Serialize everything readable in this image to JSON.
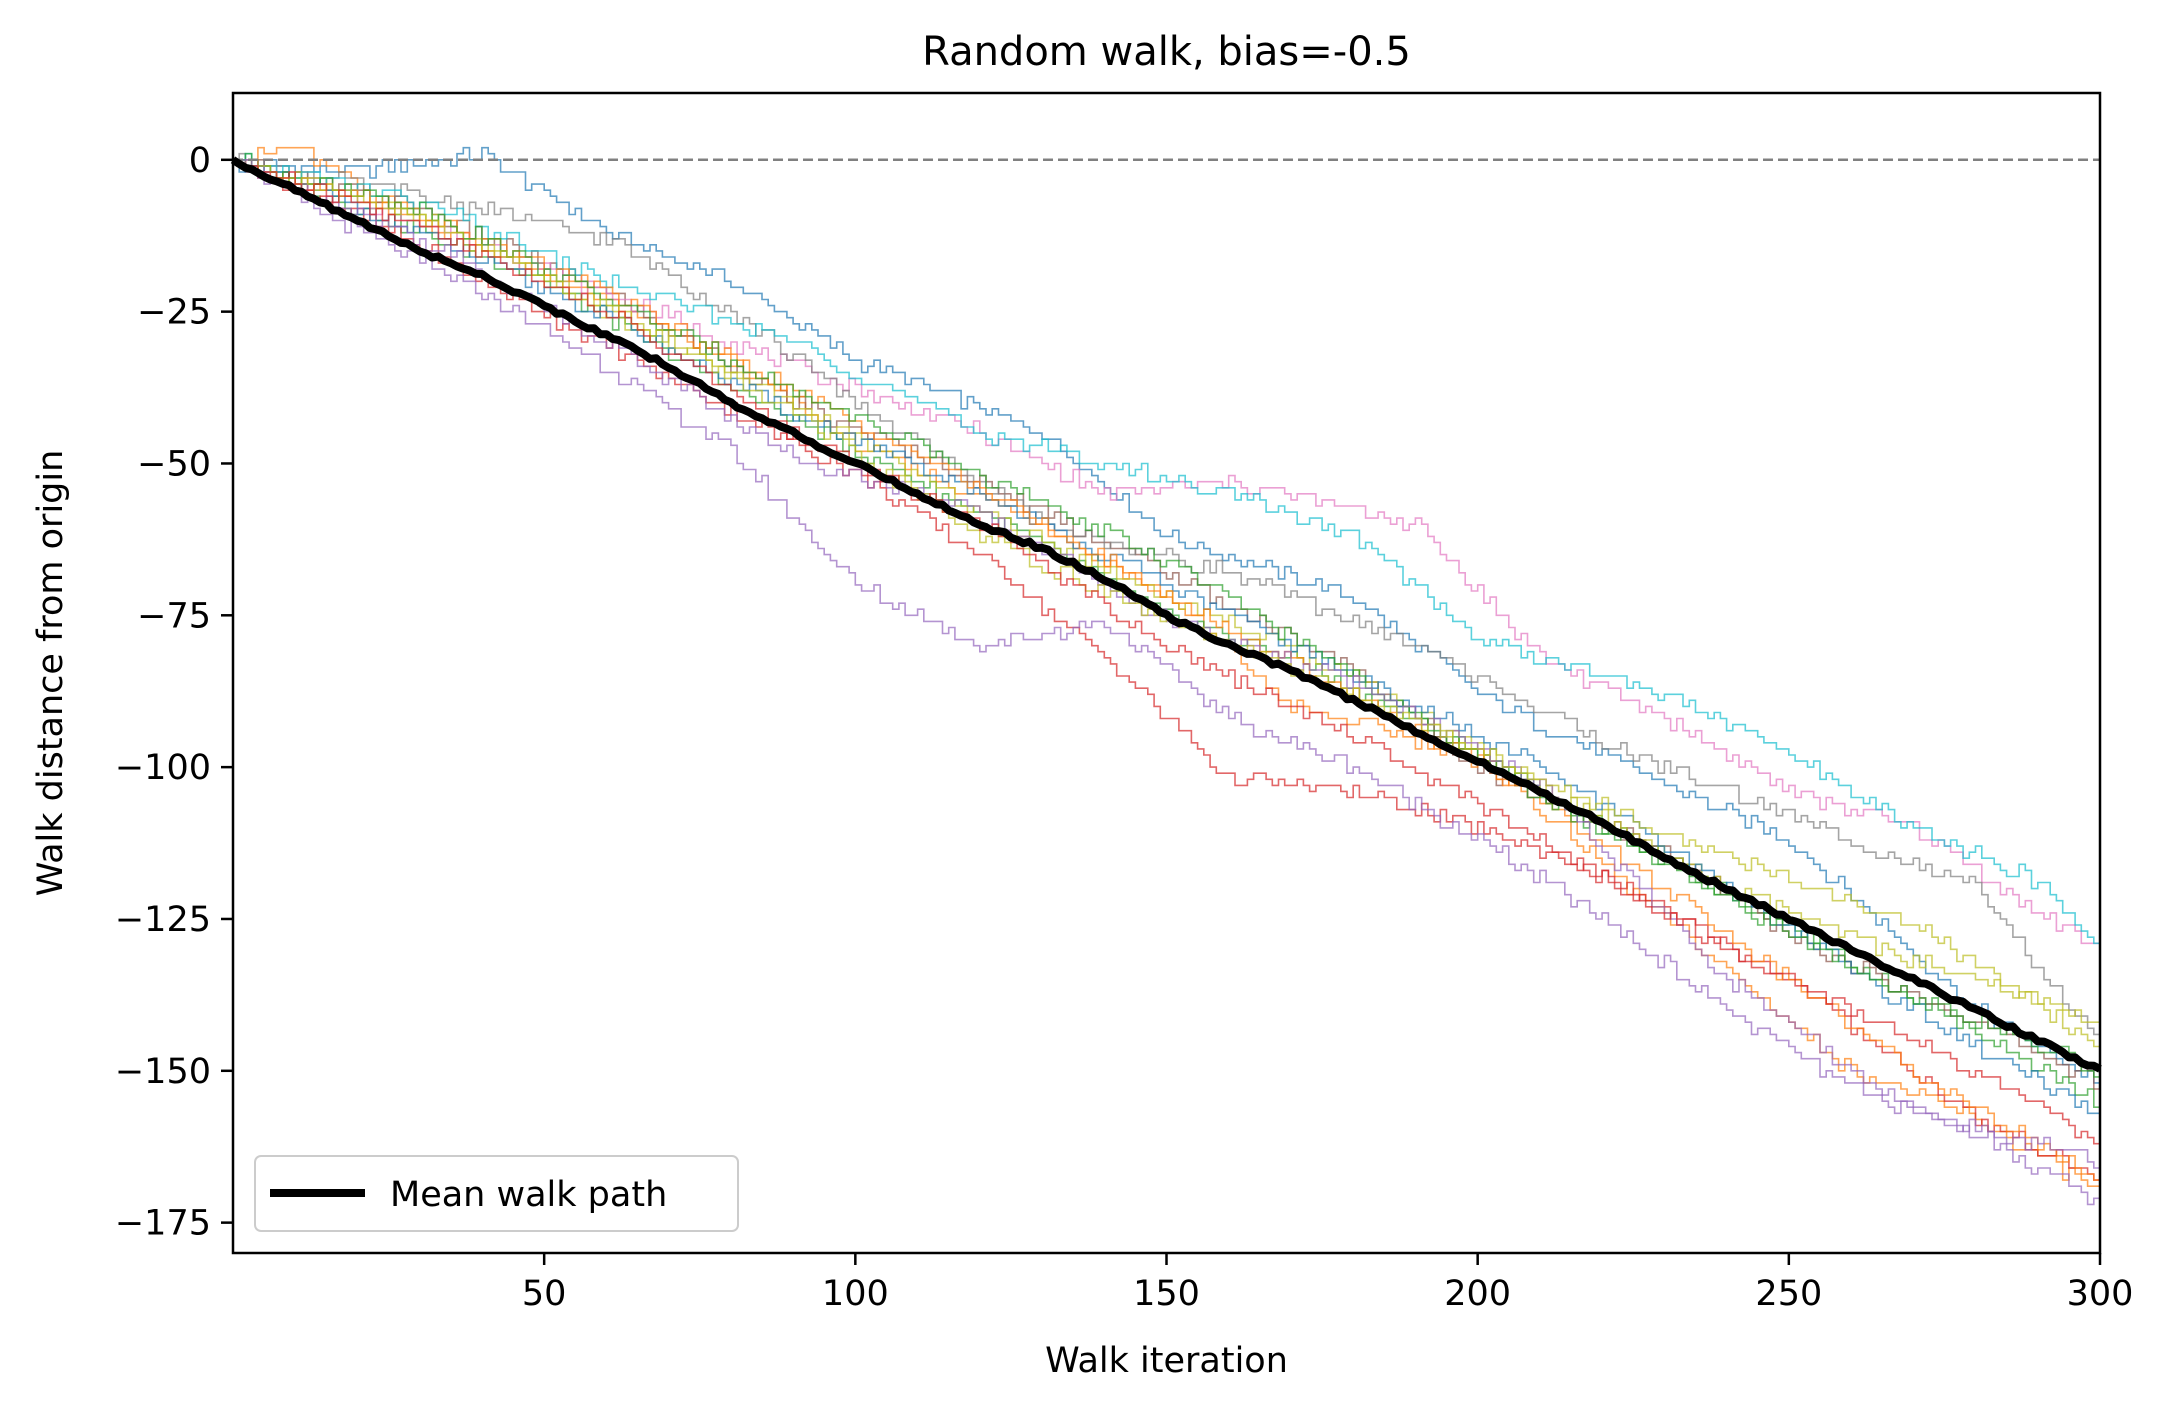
{
  "chart_data": {
    "type": "line",
    "title": "Random walk, bias=-0.5",
    "xlabel": "Walk iteration",
    "ylabel": "Walk distance from origin",
    "xlim": [
      0,
      300
    ],
    "ylim": [
      -180,
      11
    ],
    "xticks": [
      50,
      100,
      150,
      200,
      250,
      300
    ],
    "xtick_labels": [
      "50",
      "100",
      "150",
      "200",
      "250",
      "300"
    ],
    "yticks": [
      0,
      -25,
      -50,
      -75,
      -100,
      -125,
      -150,
      -175
    ],
    "ytick_labels": [
      "0",
      "−25",
      "−50",
      "−75",
      "−100",
      "−125",
      "−150",
      "−175"
    ],
    "grid": false,
    "reference_line": {
      "y": 0,
      "style": "dashed",
      "color": "#808080"
    },
    "legend": {
      "position": "lower-left",
      "entries": [
        "Mean walk path"
      ]
    },
    "mean_series": {
      "name": "Mean walk path",
      "color": "#000000",
      "x": [
        0,
        10,
        20,
        30,
        40,
        50,
        60,
        70,
        80,
        90,
        100,
        110,
        120,
        130,
        140,
        150,
        160,
        170,
        180,
        190,
        200,
        210,
        220,
        230,
        240,
        250,
        260,
        270,
        280,
        290,
        300
      ],
      "y": [
        0,
        -5,
        -10,
        -15,
        -19,
        -24,
        -29,
        -34,
        -40,
        -45,
        -50,
        -55,
        -60,
        -64,
        -69,
        -75,
        -80,
        -84,
        -89,
        -94,
        -99,
        -104,
        -109,
        -115,
        -120,
        -125,
        -130,
        -135,
        -140,
        -145,
        -150
      ]
    },
    "walk_series": [
      {
        "color": "#1f77b4",
        "x": [
          0,
          20,
          40,
          60,
          80,
          100,
          130,
          150,
          180,
          200,
          220,
          250,
          280,
          300
        ],
        "y": [
          0,
          -2,
          1,
          -12,
          -20,
          -33,
          -45,
          -62,
          -72,
          -88,
          -98,
          -112,
          -140,
          -152
        ]
      },
      {
        "color": "#ff7f0e",
        "x": [
          0,
          10,
          30,
          50,
          80,
          100,
          130,
          150,
          170,
          200,
          230,
          260,
          280,
          300
        ],
        "y": [
          0,
          2,
          -10,
          -19,
          -33,
          -47,
          -60,
          -72,
          -90,
          -98,
          -125,
          -150,
          -158,
          -170
        ]
      },
      {
        "color": "#2ca02c",
        "x": [
          0,
          30,
          50,
          70,
          100,
          120,
          150,
          170,
          200,
          220,
          250,
          270,
          300
        ],
        "y": [
          0,
          -12,
          -20,
          -32,
          -48,
          -58,
          -75,
          -82,
          -98,
          -110,
          -126,
          -138,
          -155
        ]
      },
      {
        "color": "#d62728",
        "x": [
          0,
          20,
          40,
          70,
          100,
          120,
          140,
          160,
          180,
          200,
          220,
          250,
          280,
          300
        ],
        "y": [
          0,
          -9,
          -20,
          -36,
          -52,
          -65,
          -82,
          -102,
          -104,
          -110,
          -118,
          -135,
          -158,
          -168
        ]
      },
      {
        "color": "#9467bd",
        "x": [
          0,
          20,
          40,
          60,
          80,
          100,
          120,
          140,
          160,
          180,
          200,
          220,
          240,
          260,
          280,
          300
        ],
        "y": [
          0,
          -12,
          -22,
          -34,
          -48,
          -70,
          -80,
          -76,
          -92,
          -100,
          -112,
          -125,
          -140,
          -153,
          -160,
          -172
        ]
      },
      {
        "color": "#8c564b",
        "x": [
          0,
          30,
          60,
          90,
          120,
          150,
          180,
          200,
          230,
          250,
          280,
          300
        ],
        "y": [
          0,
          -8,
          -22,
          -40,
          -53,
          -68,
          -84,
          -100,
          -114,
          -128,
          -142,
          -152
        ]
      },
      {
        "color": "#e377c2",
        "x": [
          0,
          30,
          60,
          90,
          120,
          140,
          160,
          190,
          210,
          230,
          250,
          270,
          290,
          300
        ],
        "y": [
          0,
          -10,
          -22,
          -34,
          -45,
          -55,
          -53,
          -60,
          -82,
          -92,
          -104,
          -110,
          -124,
          -130
        ]
      },
      {
        "color": "#7f7f7f",
        "x": [
          0,
          30,
          60,
          80,
          100,
          130,
          160,
          190,
          220,
          250,
          280,
          300
        ],
        "y": [
          0,
          -6,
          -13,
          -25,
          -40,
          -60,
          -68,
          -80,
          -96,
          -108,
          -120,
          -146
        ]
      },
      {
        "color": "#bcbd22",
        "x": [
          0,
          30,
          60,
          90,
          120,
          150,
          180,
          210,
          240,
          270,
          300
        ],
        "y": [
          0,
          -9,
          -25,
          -40,
          -58,
          -72,
          -85,
          -103,
          -120,
          -132,
          -142
        ]
      },
      {
        "color": "#17becf",
        "x": [
          0,
          30,
          60,
          90,
          120,
          140,
          160,
          180,
          200,
          230,
          250,
          270,
          290,
          300
        ],
        "y": [
          0,
          -7,
          -20,
          -30,
          -45,
          -50,
          -55,
          -62,
          -79,
          -88,
          -98,
          -110,
          -119,
          -130
        ]
      },
      {
        "color": "#1f77b4",
        "x": [
          0,
          30,
          60,
          90,
          120,
          150,
          180,
          210,
          240,
          270,
          300
        ],
        "y": [
          0,
          -12,
          -26,
          -42,
          -55,
          -70,
          -85,
          -100,
          -120,
          -140,
          -158
        ]
      },
      {
        "color": "#ff7f0e",
        "x": [
          0,
          30,
          60,
          90,
          120,
          150,
          180,
          210,
          240,
          270,
          300
        ],
        "y": [
          0,
          -9,
          -22,
          -38,
          -54,
          -72,
          -88,
          -105,
          -128,
          -150,
          -168
        ]
      },
      {
        "color": "#2ca02c",
        "x": [
          0,
          30,
          60,
          90,
          120,
          150,
          180,
          210,
          240,
          270,
          300
        ],
        "y": [
          0,
          -8,
          -23,
          -38,
          -52,
          -66,
          -85,
          -105,
          -122,
          -138,
          -150
        ]
      },
      {
        "color": "#9467bd",
        "x": [
          0,
          30,
          60,
          90,
          120,
          150,
          180,
          210,
          240,
          270,
          300
        ],
        "y": [
          0,
          -13,
          -30,
          -49,
          -58,
          -76,
          -86,
          -103,
          -135,
          -157,
          -165
        ]
      },
      {
        "color": "#bcbd22",
        "x": [
          0,
          30,
          60,
          90,
          120,
          150,
          180,
          210,
          240,
          270,
          300
        ],
        "y": [
          0,
          -10,
          -24,
          -42,
          -62,
          -76,
          -88,
          -102,
          -115,
          -126,
          -146
        ]
      },
      {
        "color": "#d62728",
        "x": [
          0,
          30,
          60,
          90,
          120,
          150,
          180,
          210,
          240,
          270,
          300
        ],
        "y": [
          0,
          -11,
          -25,
          -45,
          -60,
          -80,
          -95,
          -112,
          -130,
          -145,
          -162
        ]
      }
    ]
  }
}
